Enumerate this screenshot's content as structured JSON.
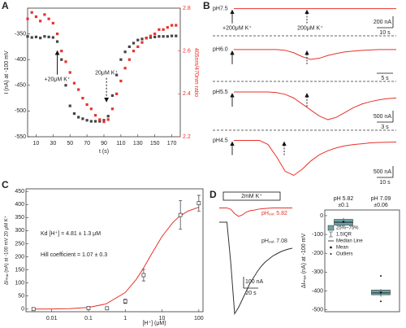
{
  "chart_data": [
    {
      "label": "A",
      "type": "dual_scatter",
      "xlabel": "t (s)",
      "ylabel": "I (nA) at -100 mV",
      "y2label": "405nm/470nm ratio",
      "x": [
        0,
        5,
        10,
        15,
        20,
        25,
        30,
        35,
        40,
        45,
        50,
        55,
        60,
        65,
        70,
        75,
        80,
        85,
        90,
        95,
        100,
        105,
        110,
        115,
        120,
        125,
        130,
        135,
        140,
        145,
        150,
        155,
        160,
        165,
        170,
        175
      ],
      "series": [
        {
          "color": "#444444",
          "values": [
            -355,
            -357,
            -356,
            -358,
            -355,
            -356,
            -357,
            -365,
            -400,
            -450,
            -490,
            -505,
            -512,
            -515,
            -518,
            -520,
            -520,
            -520,
            -518,
            -510,
            -470,
            -430,
            -400,
            -385,
            -375,
            -368,
            -362,
            -360,
            -358,
            -357,
            -356,
            -355,
            -355,
            -355,
            -354,
            -354
          ]
        },
        {
          "color": "#e8322a",
          "axis": "y2",
          "values": [
            2.75,
            2.78,
            2.76,
            2.74,
            2.77,
            2.75,
            2.73,
            2.68,
            2.6,
            2.55,
            2.5,
            2.45,
            2.42,
            2.38,
            2.35,
            2.33,
            2.3,
            2.28,
            2.27,
            2.28,
            2.33,
            2.4,
            2.46,
            2.52,
            2.56,
            2.6,
            2.62,
            2.64,
            2.66,
            2.67,
            2.68,
            2.7,
            2.7,
            2.71,
            2.72,
            2.72
          ]
        }
      ],
      "xlim": [
        0,
        180
      ],
      "xticks": [
        10,
        30,
        50,
        70,
        90,
        110,
        130,
        150,
        170
      ],
      "ylim": [
        -550,
        -300
      ],
      "yticks": [
        -550,
        -500,
        -450,
        -400,
        -350
      ],
      "y2lim": [
        2.2,
        2.8
      ],
      "y2ticks": [
        2.2,
        2.4,
        2.6,
        2.8
      ],
      "annotations": [
        {
          "text": "+20μM K⁺",
          "x": 35,
          "y": -385,
          "direction": "up",
          "style": "solid"
        },
        {
          "text": "20μM K⁺",
          "x": 93,
          "y": -480,
          "direction": "down",
          "style": "dashed"
        }
      ]
    },
    {
      "label": "B",
      "type": "traces",
      "annotations": [
        "+200μM K⁺",
        "200μM K⁺"
      ],
      "series": [
        {
          "name": "pH7.5",
          "color": "#e8322a",
          "ylim": [
            -100,
            20
          ],
          "scale_y": "200 nA",
          "scale_x": "10 s",
          "values": [
            0,
            0,
            0,
            0,
            0,
            0,
            0,
            0,
            0,
            0,
            0,
            0,
            0,
            0,
            0,
            0,
            0,
            0,
            0,
            0
          ]
        },
        {
          "name": "pH6.0",
          "color": "#e8322a",
          "ylim": [
            -60,
            10
          ],
          "scale_x": "5 s",
          "values": [
            0,
            0,
            0,
            0,
            0,
            0,
            -2,
            -8,
            -18,
            -25,
            -22,
            -15,
            -10,
            -6,
            -4,
            -2,
            -1,
            0,
            0,
            0
          ]
        },
        {
          "name": "pH5.5",
          "color": "#e8322a",
          "ylim": [
            -250,
            20
          ],
          "scale_y": "500 nA",
          "scale_x": "3 s",
          "values": [
            0,
            0,
            0,
            0,
            0,
            -5,
            -20,
            -50,
            -100,
            -150,
            -200,
            -230,
            -210,
            -170,
            -130,
            -100,
            -80,
            -65,
            -55,
            -50
          ]
        },
        {
          "name": "pH4.5",
          "color": "#e8322a",
          "ylim": [
            -900,
            50
          ],
          "scale_y": "500 nA",
          "scale_x": "10 s",
          "values": [
            0,
            0,
            0,
            0,
            -100,
            -400,
            -750,
            -850,
            -700,
            -500,
            -350,
            -250,
            -180,
            -130,
            -100,
            -80,
            -60,
            -50,
            -45,
            -40
          ]
        }
      ]
    },
    {
      "label": "C",
      "type": "scatter",
      "log_x": true,
      "xlabel": "[H⁺] (μM)",
      "ylabel": "ΔIₘₐₓ (nA) at -100 mV 20 μM K⁺",
      "x": [
        0.0032,
        0.1,
        0.32,
        1,
        3.16,
        31.6,
        100
      ],
      "values": [
        0,
        4,
        3,
        30,
        130,
        360,
        405
      ],
      "errors": [
        2,
        3,
        3,
        8,
        22,
        55,
        30
      ],
      "color": "#333333",
      "fit": {
        "color": "#e8322a",
        "x": [
          0.003,
          0.01,
          0.03,
          0.1,
          0.3,
          1,
          2,
          3,
          5,
          10,
          20,
          30,
          50,
          100
        ],
        "values": [
          0.15,
          0.55,
          1.8,
          6.3,
          19.8,
          63.5,
          113.9,
          152.4,
          206.7,
          278,
          332.6,
          354.9,
          374.4,
          389.8
        ]
      },
      "xlim": [
        0.002,
        130
      ],
      "xticks": [
        0.01,
        0.1,
        1,
        10,
        100
      ],
      "ylim": [
        -10,
        460
      ],
      "yticks": [
        0,
        50,
        100,
        150,
        200,
        250,
        300,
        350,
        400,
        450
      ],
      "annotations": [
        "Kd [H⁺] = 4.81 ± 1.3 μM",
        "Hill coefficient = 1.07 ± 0.3"
      ]
    },
    {
      "label": "D",
      "type": "traces",
      "annotations": [
        "2mM K⁺"
      ],
      "scale_y": "100 nA",
      "scale_x": "20 s",
      "series": [
        {
          "name": "pHₒᵤₜ 5.82",
          "color": "#e8322a",
          "ylim": [
            -100,
            10
          ],
          "values": [
            0,
            0,
            0,
            -5,
            -20,
            -30,
            -25,
            -15,
            -10,
            -8,
            -5,
            -3,
            -2,
            -1,
            0,
            0,
            0,
            0,
            0,
            0
          ]
        },
        {
          "name": "pHₒᵤₜ 7.08",
          "color": "#333333",
          "ylim": [
            -460,
            20
          ],
          "values": [
            0,
            0,
            0,
            -200,
            -450,
            -420,
            -380,
            -340,
            -300,
            -270,
            -240,
            -215,
            -195,
            -180,
            -165,
            -155,
            -145,
            -138,
            -132,
            -128
          ]
        }
      ]
    },
    {
      "type": "box",
      "ylabel": "ΔIₘₐₓ (nA) at -100 mV",
      "color": "#6ba3a8",
      "categories": [
        "pH 5.82",
        "pH 7.09"
      ],
      "category_notes": [
        "±0.1",
        "±0.06"
      ],
      "boxes": [
        {
          "q1": -50,
          "q3": -20,
          "median": -35,
          "mean": -33,
          "whisker_low": -55,
          "whisker_high": -12,
          "outliers": []
        },
        {
          "q1": -420,
          "q3": -395,
          "median": -410,
          "mean": -408,
          "whisker_low": -430,
          "whisker_high": -390,
          "outliers": [
            -320,
            -455
          ]
        }
      ],
      "ylim": [
        -510,
        30
      ],
      "yticks": [
        -500,
        -400,
        -300,
        -200,
        -100,
        0
      ],
      "legend": [
        "25%~75%",
        "1.5IQR",
        "Median Line",
        "Mean",
        "Outliers"
      ]
    }
  ]
}
